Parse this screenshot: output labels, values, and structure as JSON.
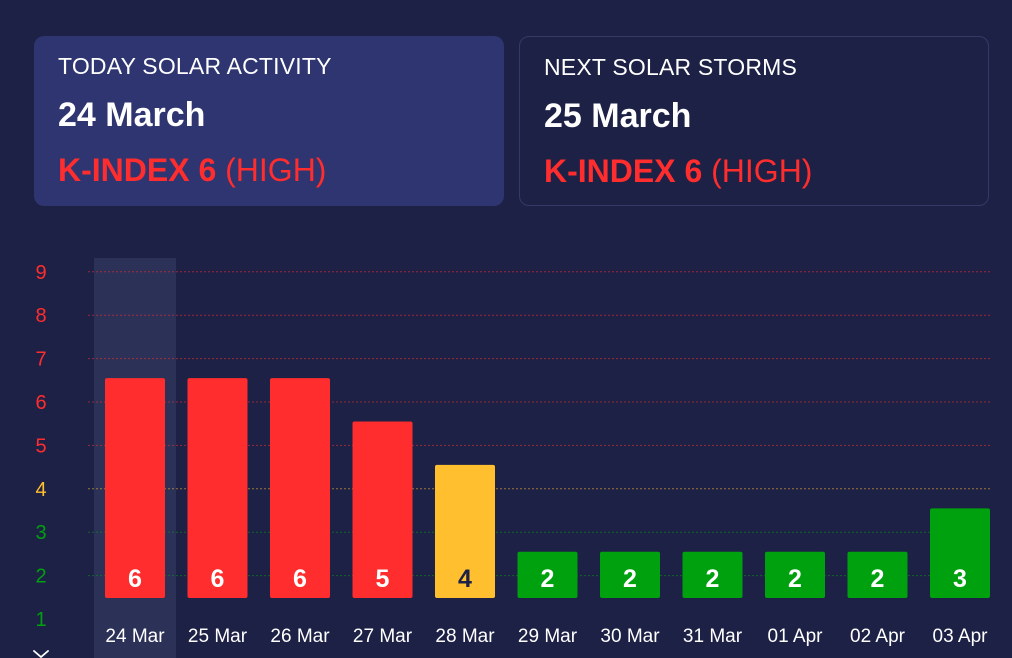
{
  "cards": {
    "today": {
      "title": "TODAY SOLAR ACTIVITY",
      "date": "24 March",
      "k_label": "K-INDEX 6",
      "k_level": "(HIGH)"
    },
    "next": {
      "title": "NEXT SOLAR STORMS",
      "date": "25 March",
      "k_label": "K-INDEX 6",
      "k_level": "(HIGH)"
    }
  },
  "colors": {
    "background": "#1d2145",
    "card_highlight": "#2e3570",
    "high": "#ff2d2d",
    "moderate": "#ffbf2e",
    "low": "#00a10f"
  },
  "chart_data": {
    "type": "bar",
    "title": "",
    "xlabel": "",
    "ylabel": "",
    "categories": [
      "24 Mar",
      "25 Mar",
      "26 Mar",
      "27 Mar",
      "28 Mar",
      "29 Mar",
      "30 Mar",
      "31 Mar",
      "01 Apr",
      "02 Apr",
      "03 Apr"
    ],
    "values": [
      6,
      6,
      6,
      5,
      4,
      2,
      2,
      2,
      2,
      2,
      3
    ],
    "yticks": [
      1,
      2,
      3,
      4,
      5,
      6,
      7,
      8,
      9
    ],
    "ylim": [
      1,
      9
    ],
    "grid": true,
    "highlighted_category": "24 Mar",
    "legend": "none"
  }
}
